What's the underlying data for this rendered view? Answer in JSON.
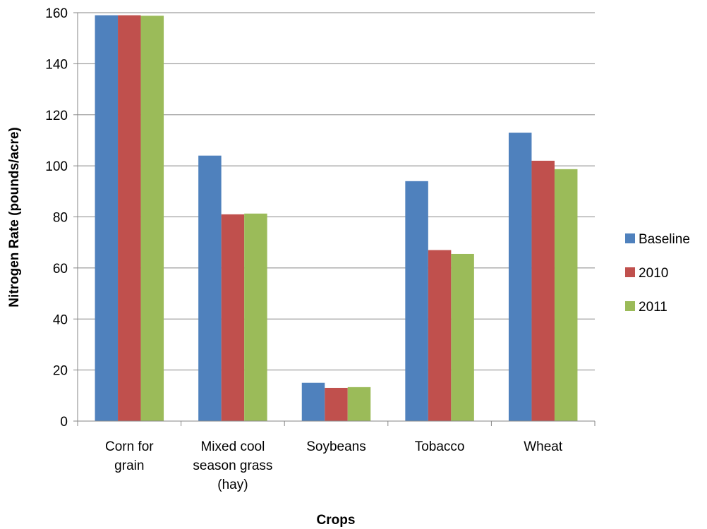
{
  "chart_data": {
    "type": "bar",
    "title": "",
    "xlabel": "Crops",
    "ylabel": "Nitrogen Rate (pounds/acre)",
    "ylim": [
      0,
      160
    ],
    "yticks": [
      0,
      20,
      40,
      60,
      80,
      100,
      120,
      140,
      160
    ],
    "grid": true,
    "legend_position": "right",
    "categories": [
      [
        "Corn for",
        "grain"
      ],
      [
        "Mixed cool",
        "season grass",
        "(hay)"
      ],
      [
        "Soybeans"
      ],
      [
        "Tobacco"
      ],
      [
        "Wheat"
      ]
    ],
    "series": [
      {
        "name": "Baseline",
        "color": "#4F81BD",
        "values": [
          159,
          104,
          15,
          94,
          113
        ]
      },
      {
        "name": "2010",
        "color": "#C0504D",
        "values": [
          159,
          81,
          13,
          67,
          102
        ]
      },
      {
        "name": "2011",
        "color": "#9BBB59",
        "values": [
          158.8,
          81.3,
          13.3,
          65.5,
          98.7
        ]
      }
    ]
  }
}
